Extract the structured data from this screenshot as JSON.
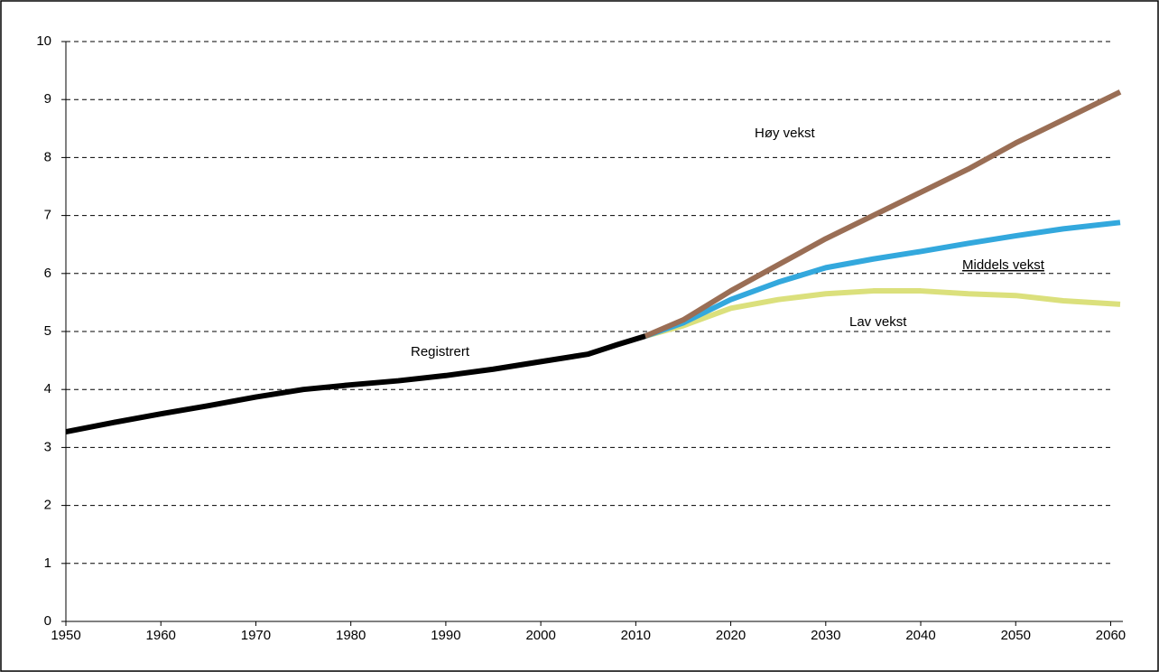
{
  "chart_data": {
    "type": "line",
    "xlim": [
      1950,
      2061
    ],
    "xticks": [
      1950,
      1960,
      1970,
      1980,
      1990,
      2000,
      2010,
      2020,
      2030,
      2040,
      2050,
      2060
    ],
    "ylim": [
      0,
      10
    ],
    "yticks": [
      0,
      1,
      2,
      3,
      4,
      5,
      6,
      7,
      8,
      9,
      10
    ],
    "grid": true,
    "series": [
      {
        "name": "Registrert",
        "color": "#000000",
        "x": [
          1950,
          1955,
          1960,
          1965,
          1970,
          1975,
          1980,
          1985,
          1990,
          1995,
          2000,
          2005,
          2008,
          2011
        ],
        "values": [
          3.27,
          3.43,
          3.58,
          3.72,
          3.87,
          4.0,
          4.08,
          4.15,
          4.24,
          4.35,
          4.48,
          4.61,
          4.77,
          4.92
        ]
      },
      {
        "name": "Høy vekst",
        "color": "#9a6e55",
        "x": [
          2011,
          2015,
          2020,
          2025,
          2030,
          2035,
          2040,
          2045,
          2050,
          2055,
          2061
        ],
        "values": [
          4.92,
          5.2,
          5.7,
          6.15,
          6.6,
          7.0,
          7.4,
          7.8,
          8.25,
          8.65,
          9.13
        ]
      },
      {
        "name": "Middels vekst",
        "color": "#33a8dd",
        "x": [
          2011,
          2015,
          2020,
          2025,
          2030,
          2035,
          2040,
          2045,
          2050,
          2055,
          2061
        ],
        "values": [
          4.92,
          5.15,
          5.55,
          5.85,
          6.1,
          6.25,
          6.38,
          6.52,
          6.65,
          6.77,
          6.88
        ]
      },
      {
        "name": "Lav vekst",
        "color": "#dbe07c",
        "x": [
          2011,
          2015,
          2020,
          2025,
          2030,
          2035,
          2040,
          2045,
          2050,
          2055,
          2061
        ],
        "values": [
          4.92,
          5.1,
          5.4,
          5.55,
          5.65,
          5.7,
          5.7,
          5.65,
          5.62,
          5.53,
          5.47
        ]
      }
    ]
  }
}
